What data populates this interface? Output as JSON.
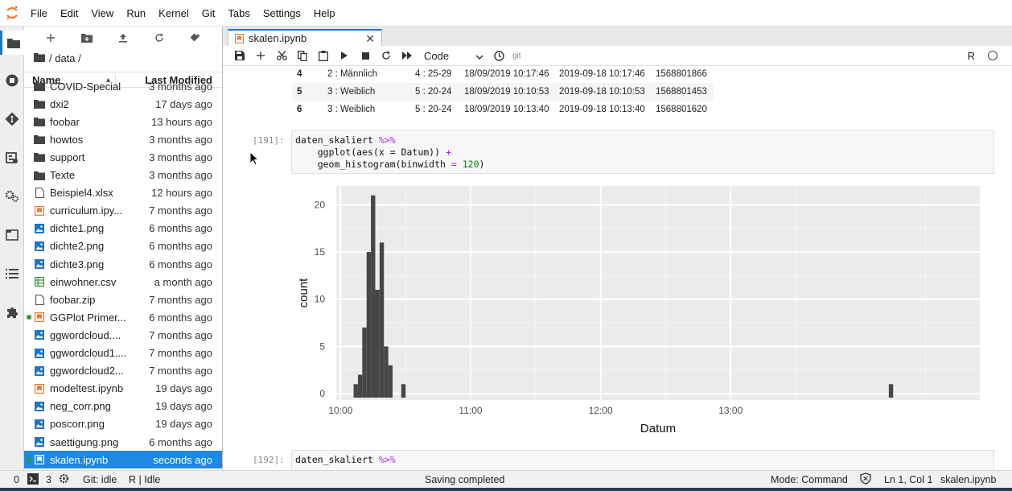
{
  "menu": [
    "File",
    "Edit",
    "View",
    "Run",
    "Kernel",
    "Git",
    "Tabs",
    "Settings",
    "Help"
  ],
  "rail_icons": [
    "folder-icon",
    "running-icon",
    "git-icon",
    "property-inspector-icon",
    "settings-icon",
    "tabs-icon",
    "toc-icon",
    "extension-icon"
  ],
  "filebrowser": {
    "path": "/ data /",
    "header_name": "Name",
    "header_modified": "Last Modified",
    "items": [
      {
        "name": "COVID-Special",
        "modified": "3 months ago",
        "icon": "folder-icon"
      },
      {
        "name": "dxi2",
        "modified": "17 days ago",
        "icon": "folder-icon"
      },
      {
        "name": "foobar",
        "modified": "13 hours ago",
        "icon": "folder-icon"
      },
      {
        "name": "howtos",
        "modified": "3 months ago",
        "icon": "folder-icon"
      },
      {
        "name": "support",
        "modified": "3 months ago",
        "icon": "folder-icon"
      },
      {
        "name": "Texte",
        "modified": "3 months ago",
        "icon": "folder-icon"
      },
      {
        "name": "Beispiel4.xlsx",
        "modified": "12 hours ago",
        "icon": "file-icon"
      },
      {
        "name": "curriculum.ipy...",
        "modified": "7 months ago",
        "icon": "notebook-icon"
      },
      {
        "name": "dichte1.png",
        "modified": "6 months ago",
        "icon": "image-icon"
      },
      {
        "name": "dichte2.png",
        "modified": "6 months ago",
        "icon": "image-icon"
      },
      {
        "name": "dichte3.png",
        "modified": "6 months ago",
        "icon": "image-icon"
      },
      {
        "name": "einwohner.csv",
        "modified": "a month ago",
        "icon": "spreadsheet-icon"
      },
      {
        "name": "foobar.zip",
        "modified": "7 months ago",
        "icon": "file-icon"
      },
      {
        "name": "GGPlot Primer...",
        "modified": "6 months ago",
        "icon": "notebook-icon",
        "running": true
      },
      {
        "name": "ggwordcloud....",
        "modified": "7 months ago",
        "icon": "image-icon"
      },
      {
        "name": "ggwordcloud1....",
        "modified": "7 months ago",
        "icon": "image-icon"
      },
      {
        "name": "ggwordcloud2...",
        "modified": "7 months ago",
        "icon": "image-icon"
      },
      {
        "name": "modeltest.ipynb",
        "modified": "19 days ago",
        "icon": "notebook-icon"
      },
      {
        "name": "neg_corr.png",
        "modified": "19 days ago",
        "icon": "image-icon"
      },
      {
        "name": "poscorr.png",
        "modified": "19 days ago",
        "icon": "image-icon"
      },
      {
        "name": "saettigung.png",
        "modified": "6 months ago",
        "icon": "image-icon"
      },
      {
        "name": "skalen.ipynb",
        "modified": "seconds ago",
        "icon": "notebook-icon",
        "running": true,
        "selected": true
      }
    ]
  },
  "tab": {
    "title": "skalen.ipynb"
  },
  "notebook_toolbar": {
    "cell_type": "Code",
    "git": "git",
    "kernel": "R"
  },
  "table_rows": [
    [
      "4",
      "2 : Männlich",
      "4 : 25-29",
      "18/09/2019 10:17:46",
      "2019-09-18 10:17:46",
      "1568801866"
    ],
    [
      "5",
      "3 : Weiblich",
      "5 : 20-24",
      "18/09/2019 10:10:53",
      "2019-09-18 10:10:53",
      "1568801453"
    ],
    [
      "6",
      "3 : Weiblich",
      "5 : 20-24",
      "18/09/2019 10:13:40",
      "2019-09-18 10:13:40",
      "1568801620"
    ]
  ],
  "cells": [
    {
      "prompt": "[191]:",
      "lines": [
        {
          "a": "daten_skaliert ",
          "op": "%>%",
          "b": "",
          "num": "",
          "c": ""
        },
        {
          "a": "    ggplot(aes(x = Datum)) ",
          "op": "+",
          "b": "",
          "num": "",
          "c": ""
        },
        {
          "a": "    geom_histogram(binwidth ",
          "op": "=",
          "b": " ",
          "num": "120",
          "c": ")"
        }
      ]
    },
    {
      "prompt": "[192]:",
      "lines": [
        {
          "a": "daten_skaliert ",
          "op": "%>%",
          "b": "",
          "num": "",
          "c": ""
        }
      ]
    }
  ],
  "chart_data": {
    "type": "bar",
    "title": "",
    "xlabel": "Datum",
    "ylabel": "count",
    "x_ticks": [
      "10:00",
      "11:00",
      "12:00",
      "13:00"
    ],
    "y_ticks": [
      "0",
      "5",
      "10",
      "15",
      "20"
    ],
    "ylim": [
      0,
      22
    ],
    "x_range_minutes": [
      "09:58",
      "14:55"
    ],
    "binwidth_seconds": 120,
    "bins": [
      {
        "start": "10:06",
        "count": 1
      },
      {
        "start": "10:08",
        "count": 2
      },
      {
        "start": "10:10",
        "count": 7
      },
      {
        "start": "10:12",
        "count": 15
      },
      {
        "start": "10:14",
        "count": 21
      },
      {
        "start": "10:16",
        "count": 11
      },
      {
        "start": "10:18",
        "count": 16
      },
      {
        "start": "10:20",
        "count": 5
      },
      {
        "start": "10:22",
        "count": 3
      },
      {
        "start": "10:28",
        "count": 1
      },
      {
        "start": "14:13",
        "count": 1
      }
    ],
    "panel_color": "#ebebeb",
    "bar_color": "#464646",
    "grid": true
  },
  "statusbar": {
    "terminals": "0",
    "kernels": "3",
    "git": "Git: idle",
    "kernel_status": "R | Idle",
    "message": "Saving completed",
    "mode": "Mode: Command",
    "position": "Ln 1, Col 1",
    "file": "skalen.ipynb"
  }
}
